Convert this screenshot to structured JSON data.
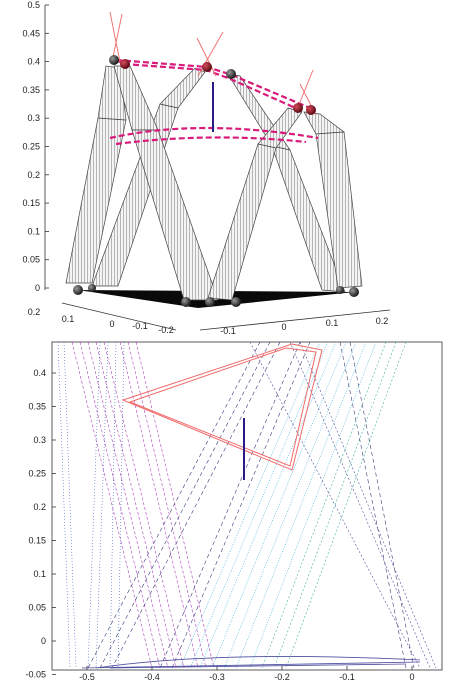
{
  "top_panel": {
    "y_ticks": [
      "0.5",
      "0.45",
      "0.4",
      "0.35",
      "0.3",
      "0.25",
      "0.2",
      "0.15",
      "0.1",
      "0.05",
      "0"
    ],
    "left_depth_ticks": [
      "0.2",
      "0.1",
      "0",
      "-0.1",
      "-0.2"
    ],
    "right_depth_ticks": [
      "-0.1",
      "0",
      "0.1",
      "0.2"
    ]
  },
  "bottom_panel": {
    "y_ticks": [
      "0.4",
      "0.35",
      "0.3",
      "0.25",
      "0.2",
      "0.15",
      "0.1",
      "0.05",
      "0",
      "-0.05"
    ],
    "x_ticks": [
      "-0.5",
      "-0.4",
      "-0.3",
      "-0.2",
      "-0.1",
      "0"
    ],
    "x_range": [
      -0.55,
      0.05
    ],
    "y_range": [
      -0.055,
      0.45
    ]
  },
  "colors": {
    "platform": "#d81b7a",
    "mast": "#2b1a86",
    "sight_lines": "#f06a6a",
    "joint": "#9b1d2a",
    "strut": "#8a8a8a",
    "legs_magenta": "#b040c0",
    "legs_blue": "#4060c8",
    "legs_cyan": "#30a8d8",
    "legs_teal": "#40b0a0",
    "legs_dark": "#3a3a7a",
    "base_line": "#5050a0"
  }
}
